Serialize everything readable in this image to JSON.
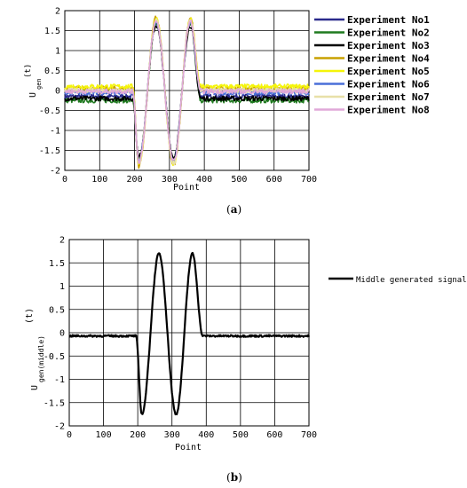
{
  "chart_data": [
    {
      "type": "line",
      "panel_label": "a",
      "xlabel": "Point",
      "ylabel_main": "U",
      "ylabel_sub": "gen",
      "ylabel_arg": "(t)",
      "xlim": [
        0,
        700
      ],
      "ylim": [
        -2,
        2
      ],
      "xticks": [
        0,
        100,
        200,
        300,
        400,
        500,
        600,
        700
      ],
      "yticks": [
        2,
        1.5,
        1,
        0.5,
        0,
        -0.5,
        -1,
        -1.5,
        -2
      ],
      "grid": true,
      "legend_position": "right",
      "series": [
        {
          "name": "Experiment No1",
          "color": "#2a2a8c",
          "baseline": -0.15,
          "amplitude": 1.75
        },
        {
          "name": "Experiment No2",
          "color": "#1f7a1f",
          "baseline": -0.25,
          "amplitude": 1.7
        },
        {
          "name": "Experiment No3",
          "color": "#000000",
          "baseline": -0.2,
          "amplitude": 1.65
        },
        {
          "name": "Experiment No4",
          "color": "#c8a000",
          "baseline": 0.05,
          "amplitude": 1.85
        },
        {
          "name": "Experiment No5",
          "color": "#f5f50a",
          "baseline": 0.1,
          "amplitude": 1.8
        },
        {
          "name": "Experiment No6",
          "color": "#4a6fd8",
          "baseline": -0.05,
          "amplitude": 1.75
        },
        {
          "name": "Experiment No7",
          "color": "#e8e0a8",
          "baseline": 0.0,
          "amplitude": 1.8
        },
        {
          "name": "Experiment No8",
          "color": "#e0a8d8",
          "baseline": -0.02,
          "amplitude": 1.75
        }
      ]
    },
    {
      "type": "line",
      "panel_label": "b",
      "xlabel": "Point",
      "ylabel_main": "U",
      "ylabel_sub": "gen(middle)",
      "ylabel_arg": "(t)",
      "xlim": [
        0,
        700
      ],
      "ylim": [
        -2,
        2
      ],
      "xticks": [
        0,
        100,
        200,
        300,
        400,
        500,
        600,
        700
      ],
      "yticks": [
        2,
        1.5,
        1,
        0.5,
        0,
        -0.5,
        -1,
        -1.5,
        -2
      ],
      "grid": true,
      "legend_position": "right",
      "series": [
        {
          "name": "Middle generated signal",
          "color": "#000000",
          "baseline": -0.07,
          "amplitude": 1.72
        }
      ]
    }
  ],
  "signal_shape": {
    "start_x": 195,
    "end_x": 390,
    "description_points": [
      {
        "x": 195,
        "y": -0.07
      },
      {
        "x": 212,
        "y": -1.75
      },
      {
        "x": 262,
        "y": 1.7
      },
      {
        "x": 312,
        "y": -1.75
      },
      {
        "x": 360,
        "y": 1.7
      },
      {
        "x": 390,
        "y": -0.1
      }
    ]
  }
}
